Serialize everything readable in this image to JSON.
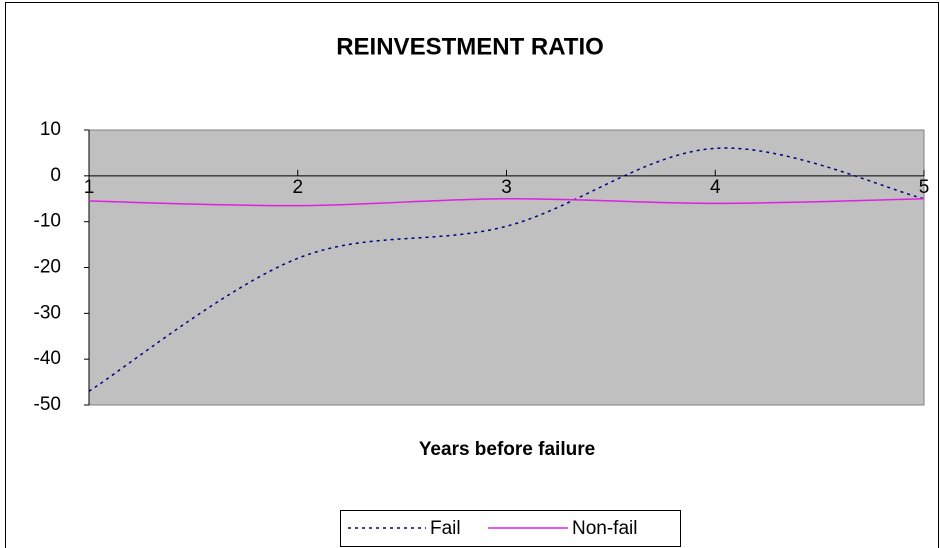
{
  "chart_data": {
    "type": "line",
    "title": "REINVESTMENT RATIO",
    "x_label": "Years before failure",
    "categories": [
      "1",
      "2",
      "3",
      "4",
      "5"
    ],
    "series": [
      {
        "name": "Fail",
        "color": "#000080",
        "dash": "dotted",
        "values": [
          -47,
          -18,
          -11,
          6,
          -5
        ]
      },
      {
        "name": "Non-fail",
        "color": "#e020e0",
        "dash": "solid",
        "values": [
          -5.5,
          -6.5,
          -5,
          -6,
          -5
        ]
      }
    ],
    "ylim": [
      -50,
      10
    ],
    "yticks": [
      -50,
      -40,
      -30,
      -20,
      -10,
      0,
      10
    ],
    "smooth": true,
    "grid": false,
    "plot_background": "#c0c0c0",
    "legend": "bottom"
  }
}
